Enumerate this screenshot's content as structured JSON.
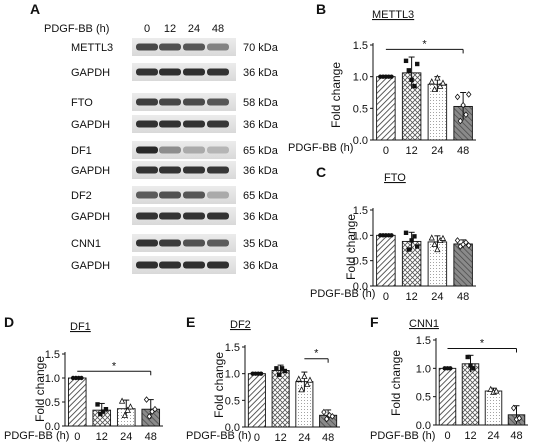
{
  "panel_letters": {
    "A": "A",
    "B": "B",
    "C": "C",
    "D": "D",
    "E": "E",
    "F": "F"
  },
  "blot": {
    "treatment_label": "PDGF-BB (h)",
    "timepoints": [
      "0",
      "12",
      "24",
      "48"
    ],
    "rows": [
      {
        "protein": "METTL3",
        "kda": "70 kDa",
        "intensity": [
          0.8,
          0.75,
          0.72,
          0.5
        ]
      },
      {
        "protein": "GAPDH",
        "kda": "36 kDa",
        "intensity": [
          0.9,
          0.92,
          0.92,
          0.9
        ]
      },
      {
        "protein": "FTO",
        "kda": "58 kDa",
        "intensity": [
          0.85,
          0.8,
          0.78,
          0.72
        ]
      },
      {
        "protein": "GAPDH",
        "kda": "36 kDa",
        "intensity": [
          0.9,
          0.9,
          0.9,
          0.88
        ]
      },
      {
        "protein": "DF1",
        "kda": "65 kDa",
        "intensity": [
          0.95,
          0.45,
          0.3,
          0.25
        ]
      },
      {
        "protein": "GAPDH",
        "kda": "36 kDa",
        "intensity": [
          0.9,
          0.9,
          0.9,
          0.88
        ]
      },
      {
        "protein": "DF2",
        "kda": "65 kDa",
        "intensity": [
          0.7,
          0.75,
          0.72,
          0.3
        ]
      },
      {
        "protein": "GAPDH",
        "kda": "36 kDa",
        "intensity": [
          0.9,
          0.9,
          0.9,
          0.9
        ]
      },
      {
        "protein": "CNN1",
        "kda": "35 kDa",
        "intensity": [
          0.9,
          0.85,
          0.75,
          0.7
        ]
      },
      {
        "protein": "GAPDH",
        "kda": "36 kDa",
        "intensity": [
          0.92,
          0.92,
          0.92,
          0.92
        ]
      }
    ]
  },
  "chart_data": [
    {
      "panel": "B",
      "type": "bar",
      "title": "METTL3",
      "xlabel": "PDGF-BB (h)",
      "ylabel": "Fold change",
      "categories": [
        "0",
        "12",
        "24",
        "48"
      ],
      "values": [
        1.0,
        1.06,
        0.88,
        0.53
      ],
      "errors": [
        0.02,
        0.25,
        0.12,
        0.22
      ],
      "ylim": [
        0,
        1.5
      ],
      "yticks": [
        "0.0",
        "0.5",
        "1.0",
        "1.5"
      ],
      "significance": [
        {
          "from": "0",
          "to": "48",
          "label": "*"
        }
      ]
    },
    {
      "panel": "C",
      "type": "bar",
      "title": "FTO",
      "xlabel": "PDGF-BB (h)",
      "ylabel": "Fold change",
      "categories": [
        "0",
        "12",
        "24",
        "48"
      ],
      "values": [
        1.0,
        0.88,
        0.87,
        0.83
      ],
      "errors": [
        0.02,
        0.18,
        0.12,
        0.08
      ],
      "ylim": [
        0,
        1.5
      ],
      "yticks": [
        "0.0",
        "0.5",
        "1.0",
        "1.5"
      ],
      "significance": []
    },
    {
      "panel": "D",
      "type": "bar",
      "title": "DF1",
      "xlabel": "PDGF-BB (h)",
      "ylabel": "Fold change",
      "categories": [
        "0",
        "12",
        "24",
        "48"
      ],
      "values": [
        1.0,
        0.33,
        0.36,
        0.35
      ],
      "errors": [
        0.02,
        0.14,
        0.18,
        0.2
      ],
      "ylim": [
        0,
        1.5
      ],
      "yticks": [
        "0.0",
        "0.5",
        "1.0",
        "1.5"
      ],
      "significance": [
        {
          "from": "0",
          "to": "48",
          "label": "*"
        }
      ]
    },
    {
      "panel": "E",
      "type": "bar",
      "title": "DF2",
      "xlabel": "PDGF-BB (h)",
      "ylabel": "Fold change",
      "categories": [
        "0",
        "12",
        "24",
        "48"
      ],
      "values": [
        1.0,
        1.06,
        0.85,
        0.22
      ],
      "errors": [
        0.02,
        0.1,
        0.18,
        0.1
      ],
      "ylim": [
        0,
        1.5
      ],
      "yticks": [
        "0.0",
        "0.5",
        "1.0",
        "1.5"
      ],
      "significance": [
        {
          "from": "24",
          "to": "48",
          "label": "*"
        }
      ]
    },
    {
      "panel": "F",
      "type": "bar",
      "title": "CNN1",
      "xlabel": "PDGF-BB (h)",
      "ylabel": "Fold change",
      "categories": [
        "0",
        "12",
        "24",
        "48"
      ],
      "values": [
        1.0,
        1.08,
        0.6,
        0.18
      ],
      "errors": [
        0.02,
        0.15,
        0.05,
        0.16
      ],
      "ylim": [
        0,
        1.5
      ],
      "yticks": [
        "0.0",
        "0.5",
        "1.0",
        "1.5"
      ],
      "significance": [
        {
          "from": "0",
          "to": "48",
          "label": "*"
        }
      ]
    }
  ]
}
